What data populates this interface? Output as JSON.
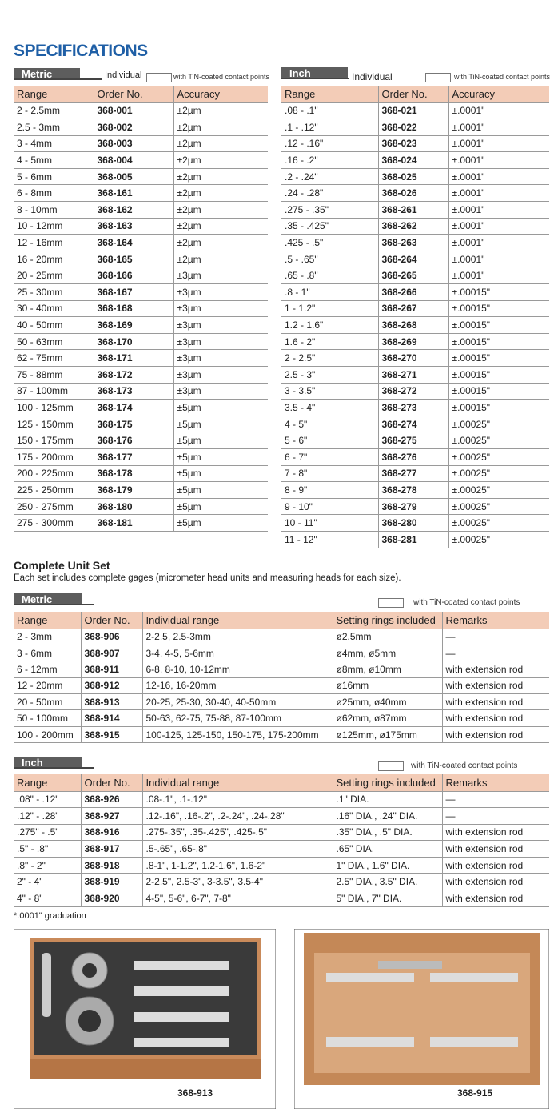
{
  "title": "SPECIFICATIONS",
  "metric": {
    "tab": "Metric",
    "individual": "Individual",
    "tin": "with TiN-coated contact points",
    "headers": [
      "Range",
      "Order No.",
      "Accuracy"
    ],
    "rows": [
      [
        "2 - 2.5mm",
        "368-001",
        "±2µm"
      ],
      [
        "2.5 - 3mm",
        "368-002",
        "±2µm"
      ],
      [
        "3 - 4mm",
        "368-003",
        "±2µm"
      ],
      [
        "4 - 5mm",
        "368-004",
        "±2µm"
      ],
      [
        "5 - 6mm",
        "368-005",
        "±2µm"
      ],
      [
        "6 - 8mm",
        "368-161",
        "±2µm"
      ],
      [
        "8 - 10mm",
        "368-162",
        "±2µm"
      ],
      [
        "10 - 12mm",
        "368-163",
        "±2µm"
      ],
      [
        "12 - 16mm",
        "368-164",
        "±2µm"
      ],
      [
        "16 - 20mm",
        "368-165",
        "±2µm"
      ],
      [
        "20 - 25mm",
        "368-166",
        "±3µm"
      ],
      [
        "25 - 30mm",
        "368-167",
        "±3µm"
      ],
      [
        "30 - 40mm",
        "368-168",
        "±3µm"
      ],
      [
        "40 - 50mm",
        "368-169",
        "±3µm"
      ],
      [
        "50 - 63mm",
        "368-170",
        "±3µm"
      ],
      [
        "62 - 75mm",
        "368-171",
        "±3µm"
      ],
      [
        "75 - 88mm",
        "368-172",
        "±3µm"
      ],
      [
        "87 - 100mm",
        "368-173",
        "±3µm"
      ],
      [
        "100 - 125mm",
        "368-174",
        "±5µm"
      ],
      [
        "125 - 150mm",
        "368-175",
        "±5µm"
      ],
      [
        "150 - 175mm",
        "368-176",
        "±5µm"
      ],
      [
        "175 - 200mm",
        "368-177",
        "±5µm"
      ],
      [
        "200 - 225mm",
        "368-178",
        "±5µm"
      ],
      [
        "225 - 250mm",
        "368-179",
        "±5µm"
      ],
      [
        "250 - 275mm",
        "368-180",
        "±5µm"
      ],
      [
        "275 - 300mm",
        "368-181",
        "±5µm"
      ]
    ]
  },
  "inch": {
    "tab": "Inch",
    "individual": "Individual",
    "tin": "with TiN-coated contact points",
    "headers": [
      "Range",
      "Order No.",
      "Accuracy"
    ],
    "rows": [
      [
        ".08 - .1\"",
        "368-021",
        "±.0001\""
      ],
      [
        ".1 - .12\"",
        "368-022",
        "±.0001\""
      ],
      [
        ".12 - .16\"",
        "368-023",
        "±.0001\""
      ],
      [
        ".16 - .2\"",
        "368-024",
        "±.0001\""
      ],
      [
        ".2 - .24\"",
        "368-025",
        "±.0001\""
      ],
      [
        ".24 - .28\"",
        "368-026",
        "±.0001\""
      ],
      [
        ".275 - .35\"",
        "368-261",
        "±.0001\""
      ],
      [
        ".35 - .425\"",
        "368-262",
        "±.0001\""
      ],
      [
        ".425 - .5\"",
        "368-263",
        "±.0001\""
      ],
      [
        ".5 - .65\"",
        "368-264",
        "±.0001\""
      ],
      [
        ".65 - .8\"",
        "368-265",
        "±.0001\""
      ],
      [
        ".8 - 1\"",
        "368-266",
        "±.00015\""
      ],
      [
        "1 - 1.2\"",
        "368-267",
        "±.00015\""
      ],
      [
        "1.2 - 1.6\"",
        "368-268",
        "±.00015\""
      ],
      [
        "1.6 - 2\"",
        "368-269",
        "±.00015\""
      ],
      [
        "2 - 2.5\"",
        "368-270",
        "±.00015\""
      ],
      [
        "2.5 - 3\"",
        "368-271",
        "±.00015\""
      ],
      [
        "3 - 3.5\"",
        "368-272",
        "±.00015\""
      ],
      [
        "3.5 - 4\"",
        "368-273",
        "±.00015\""
      ],
      [
        "4 - 5\"",
        "368-274",
        "±.00025\""
      ],
      [
        "5 - 6\"",
        "368-275",
        "±.00025\""
      ],
      [
        "6 - 7\"",
        "368-276",
        "±.00025\""
      ],
      [
        "7 - 8\"",
        "368-277",
        "±.00025\""
      ],
      [
        "8 - 9\"",
        "368-278",
        "±.00025\""
      ],
      [
        "9 - 10\"",
        "368-279",
        "±.00025\""
      ],
      [
        "10 - 11\"",
        "368-280",
        "±.00025\""
      ],
      [
        "11 - 12\"",
        "368-281",
        "±.00025\""
      ]
    ]
  },
  "set": {
    "title": "Complete Unit Set",
    "description": "Each set includes complete gages (micrometer head units and measuring heads for each size)."
  },
  "set_metric": {
    "tab": "Metric",
    "tin": "with TiN-coated contact points",
    "headers": [
      "Range",
      "Order No.",
      "Individual range",
      "Setting rings included",
      "Remarks"
    ],
    "rows": [
      [
        "2 - 3mm",
        "368-906",
        "2-2.5, 2.5-3mm",
        "ø2.5mm",
        "—"
      ],
      [
        "3 - 6mm",
        "368-907",
        "3-4, 4-5, 5-6mm",
        "ø4mm, ø5mm",
        "—"
      ],
      [
        "6 - 12mm",
        "368-911",
        "6-8, 8-10, 10-12mm",
        "ø8mm, ø10mm",
        "with extension rod"
      ],
      [
        "12 - 20mm",
        "368-912",
        "12-16, 16-20mm",
        "ø16mm",
        "with extension rod"
      ],
      [
        "20 - 50mm",
        "368-913",
        "20-25, 25-30, 30-40, 40-50mm",
        "ø25mm, ø40mm",
        "with extension rod"
      ],
      [
        "50 - 100mm",
        "368-914",
        "50-63, 62-75, 75-88, 87-100mm",
        "ø62mm, ø87mm",
        "with extension rod"
      ],
      [
        "100 - 200mm",
        "368-915",
        "100-125, 125-150, 150-175, 175-200mm",
        "ø125mm, ø175mm",
        "with extension rod"
      ]
    ]
  },
  "set_inch": {
    "tab": "Inch",
    "tin": "with TiN-coated contact points",
    "headers": [
      "Range",
      "Order No.",
      "Individual range",
      "Setting rings included",
      "Remarks"
    ],
    "rows": [
      [
        ".08\" - .12\"",
        "368-926",
        ".08-.1\", .1-.12\"",
        ".1\" DIA.",
        "—"
      ],
      [
        ".12\" - .28\"",
        "368-927",
        ".12-.16\", .16-.2\", .2-.24\", .24-.28\"",
        ".16\" DIA., .24\" DIA.",
        "—"
      ],
      [
        ".275\" - .5\"",
        "368-916",
        ".275-.35\", .35-.425\", .425-.5\"",
        ".35\" DIA., .5\" DIA.",
        "with extension rod"
      ],
      [
        ".5\" - .8\"",
        "368-917",
        ".5-.65\", .65-.8\"",
        ".65\" DIA.",
        "with extension rod"
      ],
      [
        ".8\" - 2\"",
        "368-918",
        ".8-1\", 1-1.2\", 1.2-1.6\", 1.6-2\"",
        "1\" DIA., 1.6\" DIA.",
        "with extension rod"
      ],
      [
        "2\" - 4\"",
        "368-919",
        "2-2.5\", 2.5-3\", 3-3.5\", 3.5-4\"",
        "2.5\" DIA., 3.5\" DIA.",
        "with extension rod"
      ],
      [
        "4\" - 8\"",
        "368-920",
        "4-5\", 5-6\", 6-7\", 7-8\"",
        "5\" DIA., 7\" DIA.",
        "with extension rod"
      ]
    ]
  },
  "footnote": "*.0001\" graduation",
  "photos": [
    {
      "caption": "368-913"
    },
    {
      "caption": "368-915"
    }
  ]
}
